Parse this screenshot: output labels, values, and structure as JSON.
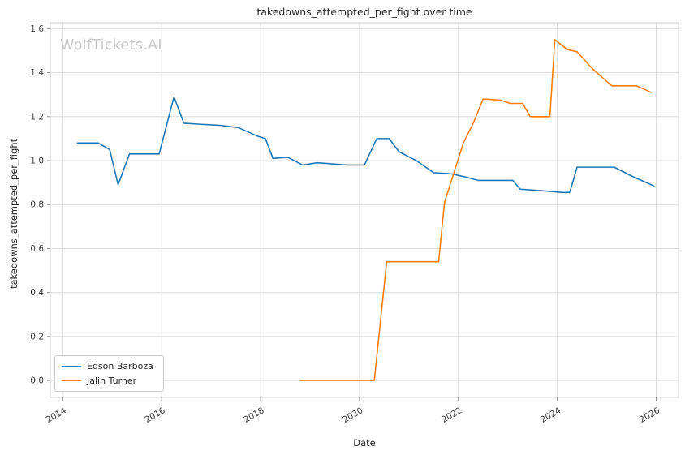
{
  "watermark": "WolfTickets.AI",
  "chart_data": {
    "type": "line",
    "title": "takedowns_attempted_per_fight over time",
    "xlabel": "Date",
    "ylabel": "takedowns_attempted_per_fight",
    "xlim": [
      2013.75,
      2026.45
    ],
    "ylim": [
      -0.077,
      1.627
    ],
    "grid": true,
    "legend_position": "lower left",
    "xticks": {
      "values": [
        2014,
        2016,
        2018,
        2020,
        2022,
        2024,
        2026
      ],
      "labels": [
        "2014",
        "2016",
        "2018",
        "2020",
        "2022",
        "2024",
        "2026"
      ]
    },
    "yticks": {
      "values": [
        0.0,
        0.2,
        0.4,
        0.6,
        0.8,
        1.0,
        1.2,
        1.4,
        1.6
      ],
      "labels": [
        "0.0",
        "0.2",
        "0.4",
        "0.6",
        "0.8",
        "1.0",
        "1.2",
        "1.4",
        "1.6"
      ]
    },
    "series": [
      {
        "name": "Edson Barboza",
        "color": "#1f77b4",
        "points": [
          [
            2014.3,
            1.08
          ],
          [
            2014.72,
            1.08
          ],
          [
            2014.95,
            1.05
          ],
          [
            2015.12,
            0.89
          ],
          [
            2015.35,
            1.03
          ],
          [
            2015.62,
            1.03
          ],
          [
            2015.95,
            1.03
          ],
          [
            2016.25,
            1.29
          ],
          [
            2016.45,
            1.17
          ],
          [
            2016.8,
            1.165
          ],
          [
            2017.2,
            1.16
          ],
          [
            2017.55,
            1.15
          ],
          [
            2017.95,
            1.11
          ],
          [
            2018.1,
            1.1
          ],
          [
            2018.25,
            1.01
          ],
          [
            2018.55,
            1.015
          ],
          [
            2018.85,
            0.98
          ],
          [
            2019.15,
            0.99
          ],
          [
            2019.45,
            0.985
          ],
          [
            2019.75,
            0.98
          ],
          [
            2020.1,
            0.98
          ],
          [
            2020.35,
            1.1
          ],
          [
            2020.6,
            1.1
          ],
          [
            2020.8,
            1.04
          ],
          [
            2021.15,
            1.0
          ],
          [
            2021.5,
            0.945
          ],
          [
            2021.85,
            0.94
          ],
          [
            2022.15,
            0.925
          ],
          [
            2022.4,
            0.91
          ],
          [
            2022.8,
            0.91
          ],
          [
            2023.1,
            0.91
          ],
          [
            2023.25,
            0.87
          ],
          [
            2023.55,
            0.865
          ],
          [
            2023.85,
            0.86
          ],
          [
            2024.1,
            0.855
          ],
          [
            2024.25,
            0.855
          ],
          [
            2024.4,
            0.97
          ],
          [
            2024.8,
            0.97
          ],
          [
            2025.15,
            0.97
          ],
          [
            2025.5,
            0.93
          ],
          [
            2025.8,
            0.9
          ],
          [
            2025.95,
            0.885
          ]
        ]
      },
      {
        "name": "Jalin Turner",
        "color": "#ff7f0e",
        "points": [
          [
            2018.8,
            0.0
          ],
          [
            2019.2,
            0.0
          ],
          [
            2019.6,
            0.0
          ],
          [
            2020.0,
            0.0
          ],
          [
            2020.3,
            0.0
          ],
          [
            2020.55,
            0.54
          ],
          [
            2021.0,
            0.54
          ],
          [
            2021.4,
            0.54
          ],
          [
            2021.6,
            0.54
          ],
          [
            2021.72,
            0.81
          ],
          [
            2022.1,
            1.08
          ],
          [
            2022.3,
            1.17
          ],
          [
            2022.5,
            1.28
          ],
          [
            2022.85,
            1.275
          ],
          [
            2023.05,
            1.26
          ],
          [
            2023.3,
            1.26
          ],
          [
            2023.45,
            1.2
          ],
          [
            2023.85,
            1.2
          ],
          [
            2023.95,
            1.55
          ],
          [
            2024.2,
            1.505
          ],
          [
            2024.4,
            1.495
          ],
          [
            2024.7,
            1.42
          ],
          [
            2025.1,
            1.34
          ],
          [
            2025.6,
            1.34
          ],
          [
            2025.9,
            1.31
          ]
        ]
      }
    ]
  }
}
